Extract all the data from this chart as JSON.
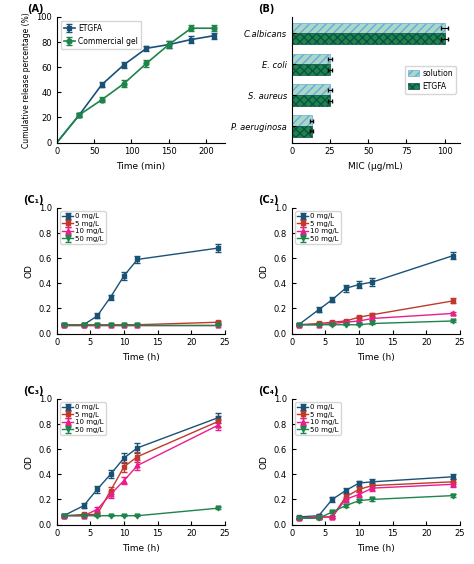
{
  "A": {
    "title": "(A)",
    "xlabel": "Time (min)",
    "ylabel": "Cumulative release percentage (%)",
    "xlim": [
      0,
      225
    ],
    "ylim": [
      0,
      100
    ],
    "xticks": [
      0,
      50,
      100,
      150,
      200
    ],
    "yticks": [
      0,
      20,
      40,
      60,
      80,
      100
    ],
    "ETGFA_x": [
      0,
      30,
      60,
      90,
      120,
      150,
      180,
      210
    ],
    "ETGFA_y": [
      0,
      22,
      46,
      62,
      75,
      78,
      82,
      85
    ],
    "ETGFA_err": [
      0,
      1.5,
      2.0,
      2.5,
      2.0,
      2.5,
      2.5,
      2.5
    ],
    "CommGel_x": [
      0,
      30,
      60,
      90,
      120,
      150,
      180,
      210
    ],
    "CommGel_y": [
      0,
      22,
      34,
      47,
      63,
      78,
      91,
      91
    ],
    "CommGel_err": [
      0,
      1.5,
      2.0,
      2.5,
      2.5,
      2.5,
      2.5,
      2.5
    ],
    "color_ETGFA": "#1a5276",
    "color_CommGel": "#1e8449",
    "legend_labels": [
      "ETGFA",
      "Commercial gel"
    ]
  },
  "B": {
    "title": "(B)",
    "xlabel": "MIC (μg/mL)",
    "xlim": [
      0,
      110
    ],
    "xticks": [
      0,
      25,
      50,
      75,
      100
    ],
    "organisms": [
      "P. aeruginosa",
      "S. aureus",
      "E. coli",
      "C.albicans"
    ],
    "solution_values": [
      13,
      25,
      25,
      100
    ],
    "ETGFA_values": [
      13,
      25,
      25,
      100
    ],
    "solution_err": [
      1,
      1.5,
      1.5,
      2
    ],
    "ETGFA_err": [
      1,
      1.5,
      1.5,
      2
    ],
    "color_solution": "#aed6c4",
    "color_ETGFA": "#1e8449",
    "legend_labels": [
      "solution",
      "ETGFA"
    ]
  },
  "C1": {
    "title": "(C₁)",
    "xlabel": "Time (h)",
    "ylabel": "OD",
    "xlim": [
      0,
      25
    ],
    "ylim": [
      0,
      1.0
    ],
    "xticks": [
      0,
      5,
      10,
      15,
      20,
      25
    ],
    "yticks": [
      0.0,
      0.2,
      0.4,
      0.6,
      0.8,
      1.0
    ],
    "time": [
      1,
      4,
      6,
      8,
      10,
      12,
      24
    ],
    "data_0": [
      0.07,
      0.07,
      0.14,
      0.29,
      0.46,
      0.59,
      0.68
    ],
    "err_0": [
      0.01,
      0.01,
      0.02,
      0.02,
      0.03,
      0.03,
      0.03
    ],
    "data_5": [
      0.07,
      0.07,
      0.07,
      0.07,
      0.07,
      0.07,
      0.09
    ],
    "err_5": [
      0.005,
      0.005,
      0.005,
      0.005,
      0.005,
      0.005,
      0.01
    ],
    "data_10": [
      0.07,
      0.07,
      0.07,
      0.07,
      0.07,
      0.07,
      0.07
    ],
    "err_10": [
      0.005,
      0.005,
      0.005,
      0.005,
      0.005,
      0.005,
      0.005
    ],
    "data_50": [
      0.07,
      0.07,
      0.07,
      0.07,
      0.07,
      0.07,
      0.07
    ],
    "err_50": [
      0.005,
      0.005,
      0.005,
      0.005,
      0.005,
      0.005,
      0.005
    ],
    "color_0": "#1a5276",
    "color_5": "#c0392b",
    "color_10": "#e91e8c",
    "color_50": "#1e8449",
    "legend_labels": [
      "0 mg/L",
      "5 mg/L",
      "10 mg/L",
      "50 mg/L"
    ]
  },
  "C2": {
    "title": "(C₂)",
    "xlabel": "Time (h)",
    "ylabel": "OD",
    "xlim": [
      0,
      25
    ],
    "ylim": [
      0,
      1.0
    ],
    "xticks": [
      0,
      5,
      10,
      15,
      20,
      25
    ],
    "yticks": [
      0.0,
      0.2,
      0.4,
      0.6,
      0.8,
      1.0
    ],
    "time": [
      1,
      4,
      6,
      8,
      10,
      12,
      24
    ],
    "data_0": [
      0.07,
      0.19,
      0.27,
      0.36,
      0.39,
      0.41,
      0.62
    ],
    "err_0": [
      0.01,
      0.02,
      0.02,
      0.03,
      0.03,
      0.03,
      0.03
    ],
    "data_5": [
      0.07,
      0.08,
      0.09,
      0.1,
      0.13,
      0.15,
      0.26
    ],
    "err_5": [
      0.005,
      0.01,
      0.01,
      0.01,
      0.01,
      0.01,
      0.02
    ],
    "data_10": [
      0.07,
      0.07,
      0.08,
      0.09,
      0.1,
      0.12,
      0.16
    ],
    "err_10": [
      0.005,
      0.005,
      0.005,
      0.01,
      0.01,
      0.01,
      0.01
    ],
    "data_50": [
      0.07,
      0.07,
      0.07,
      0.07,
      0.07,
      0.08,
      0.1
    ],
    "err_50": [
      0.005,
      0.005,
      0.005,
      0.005,
      0.005,
      0.005,
      0.01
    ],
    "color_0": "#1a5276",
    "color_5": "#c0392b",
    "color_10": "#e91e8c",
    "color_50": "#1e8449",
    "legend_labels": [
      "0 mg/L",
      "5 mg/L",
      "10 mg/L",
      "50 mg/L"
    ]
  },
  "C3": {
    "title": "(C₃)",
    "xlabel": "Time (h)",
    "ylabel": "OD",
    "xlim": [
      0,
      25
    ],
    "ylim": [
      0,
      1.0
    ],
    "xticks": [
      0,
      5,
      10,
      15,
      20,
      25
    ],
    "yticks": [
      0.0,
      0.2,
      0.4,
      0.6,
      0.8,
      1.0
    ],
    "time": [
      1,
      4,
      6,
      8,
      10,
      12,
      24
    ],
    "data_0": [
      0.07,
      0.15,
      0.28,
      0.4,
      0.53,
      0.61,
      0.85
    ],
    "err_0": [
      0.01,
      0.02,
      0.03,
      0.03,
      0.04,
      0.04,
      0.04
    ],
    "data_5": [
      0.07,
      0.08,
      0.08,
      0.27,
      0.46,
      0.54,
      0.82
    ],
    "err_5": [
      0.01,
      0.01,
      0.01,
      0.03,
      0.04,
      0.04,
      0.04
    ],
    "data_10": [
      0.07,
      0.07,
      0.12,
      0.24,
      0.35,
      0.47,
      0.79
    ],
    "err_10": [
      0.005,
      0.01,
      0.02,
      0.03,
      0.03,
      0.04,
      0.04
    ],
    "data_50": [
      0.07,
      0.07,
      0.07,
      0.07,
      0.07,
      0.07,
      0.13
    ],
    "err_50": [
      0.005,
      0.005,
      0.005,
      0.005,
      0.005,
      0.005,
      0.01
    ],
    "color_0": "#1a5276",
    "color_5": "#c0392b",
    "color_10": "#e91e8c",
    "color_50": "#1e8449",
    "legend_labels": [
      "0 mg/L",
      "5 mg/L",
      "10 mg/L",
      "50 mg/L"
    ]
  },
  "C4": {
    "title": "(C₄)",
    "xlabel": "Time (h)",
    "ylabel": "OD",
    "xlim": [
      0,
      25
    ],
    "ylim": [
      0,
      1.0
    ],
    "xticks": [
      0,
      5,
      10,
      15,
      20,
      25
    ],
    "yticks": [
      0.0,
      0.2,
      0.4,
      0.6,
      0.8,
      1.0
    ],
    "time": [
      1,
      4,
      6,
      8,
      10,
      12,
      24
    ],
    "data_0": [
      0.06,
      0.07,
      0.2,
      0.27,
      0.33,
      0.34,
      0.38
    ],
    "err_0": [
      0.005,
      0.01,
      0.02,
      0.02,
      0.02,
      0.02,
      0.02
    ],
    "data_5": [
      0.05,
      0.06,
      0.06,
      0.22,
      0.28,
      0.31,
      0.34
    ],
    "err_5": [
      0.005,
      0.005,
      0.01,
      0.02,
      0.02,
      0.02,
      0.02
    ],
    "data_10": [
      0.05,
      0.06,
      0.06,
      0.2,
      0.24,
      0.29,
      0.32
    ],
    "err_10": [
      0.005,
      0.005,
      0.01,
      0.02,
      0.02,
      0.02,
      0.02
    ],
    "data_50": [
      0.05,
      0.05,
      0.1,
      0.15,
      0.19,
      0.2,
      0.23
    ],
    "err_50": [
      0.005,
      0.005,
      0.01,
      0.01,
      0.01,
      0.01,
      0.01
    ],
    "color_0": "#1a5276",
    "color_5": "#c0392b",
    "color_10": "#e91e8c",
    "color_50": "#1e8449",
    "legend_labels": [
      "0 mg/L",
      "5 mg/L",
      "10 mg/L",
      "50 mg/L"
    ]
  }
}
